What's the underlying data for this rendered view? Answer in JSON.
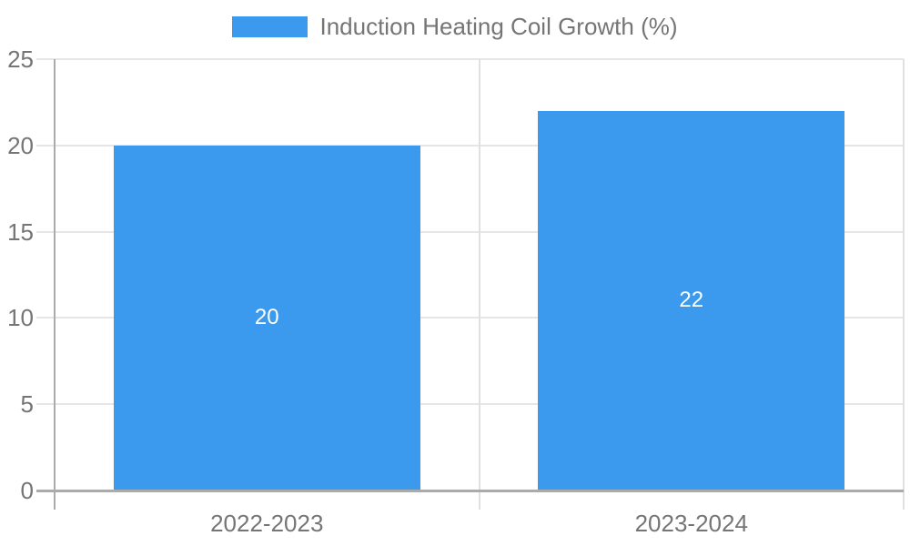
{
  "legend": {
    "label": "Induction Heating Coil Growth (%)",
    "position": "top-center"
  },
  "chart_data": {
    "type": "bar",
    "title": "Induction Heating Coil Growth (%)",
    "categories": [
      "2022-2023",
      "2023-2024"
    ],
    "values": [
      20,
      22
    ],
    "value_labels": [
      "20",
      "22"
    ],
    "xlabel": "",
    "ylabel": "",
    "ylim": [
      0,
      25
    ],
    "yticks": [
      0,
      5,
      10,
      15,
      20,
      25
    ],
    "grid": true,
    "legend_entries": [
      "Induction Heating Coil Growth (%)"
    ],
    "legend_position": "top",
    "colors": {
      "bar": "#3B99EE",
      "text": "#757575",
      "grid": "#E6E6E6",
      "divider": "#E0E0E0",
      "axis": "#ABABAB",
      "value_text": "#FFFFFF",
      "background": "#FFFFFF"
    }
  }
}
